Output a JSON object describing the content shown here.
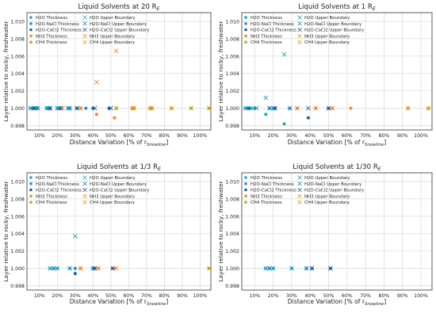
{
  "chart_data": [
    {
      "type": "scatter",
      "title": "Liquid Solvents at 20 R",
      "title_subscript": "E",
      "xlabel": "Distance Variation [% of r",
      "xlabel_subscript": "Snowline",
      "xlabel_close": "]",
      "ylabel": "Layer relative to rocky, freshwater",
      "ylim": [
        0.9975,
        1.011
      ],
      "xlim": [
        3,
        106
      ],
      "yticks": [
        "1.010",
        "1.008",
        "1.006",
        "1.004",
        "1.002",
        "1.000",
        "0.998"
      ],
      "xticks": [
        "10%",
        "20%",
        "30%",
        "40%",
        "50%",
        "60%",
        "70%",
        "80%",
        "90%",
        "100%"
      ],
      "grid": true,
      "legend": "top-left",
      "series": [
        {
          "name": "H2O Thickness",
          "marker": "square",
          "color": "#1aa6b4",
          "x": [
            5,
            8,
            14,
            20,
            26,
            33
          ],
          "y": [
            1.0,
            1.0,
            1.0,
            1.0,
            1.0,
            1.0
          ]
        },
        {
          "name": "H2O-NaCl Thickness",
          "marker": "square",
          "color": "#2b83ba",
          "x": [
            6,
            9,
            15,
            21,
            27,
            36
          ],
          "y": [
            1.0,
            1.0,
            1.0,
            1.0,
            1.0,
            1.0
          ]
        },
        {
          "name": "H2O-CaCl2 Thickness",
          "marker": "square",
          "color": "#1f5c99",
          "x": [
            7,
            16,
            22,
            31,
            40,
            49
          ],
          "y": [
            1.0,
            1.0,
            1.0,
            1.0,
            1.0,
            1.0
          ]
        },
        {
          "name": "NH3 Thickness",
          "marker": "square",
          "color": "#f0853a",
          "x": [
            33,
            42,
            52,
            62,
            72
          ],
          "y": [
            1.0,
            0.9993,
            0.9989,
            1.0,
            1.0
          ]
        },
        {
          "name": "CH4 Thickness",
          "marker": "square",
          "color": "#9aae2a",
          "x": [
            53,
            63,
            73,
            84,
            95,
            105
          ],
          "y": [
            1.0,
            1.0,
            1.0,
            1.0,
            1.0,
            1.0
          ]
        },
        {
          "name": "H2O Upper Boundary",
          "marker": "x",
          "color": "#1aa6b4",
          "x": [
            5,
            8,
            14,
            20,
            26
          ],
          "y": [
            1.0,
            1.0,
            1.0,
            1.0,
            1.0
          ]
        },
        {
          "name": "H2O-NaCl Upper Boundary",
          "marker": "x",
          "color": "#2b83ba",
          "x": [
            9,
            15,
            21,
            27
          ],
          "y": [
            1.0,
            1.0,
            1.0,
            1.0
          ]
        },
        {
          "name": "H2O-CaCl2 Upper Boundary",
          "marker": "x",
          "color": "#1f5c99",
          "x": [
            7,
            16,
            22,
            31,
            41,
            50
          ],
          "y": [
            1.0,
            1.0,
            1.0,
            1.0,
            1.0,
            1.0
          ]
        },
        {
          "name": "NH3 Upper Boundary",
          "marker": "x",
          "color": "#f0853a",
          "x": [
            23,
            33,
            42,
            53,
            62,
            72
          ],
          "y": [
            1.0,
            1.0,
            1.003,
            1.0066,
            1.0,
            1.0
          ]
        },
        {
          "name": "CH4 Upper Boundary",
          "marker": "x",
          "color": "#d6a020",
          "x": [
            53,
            63,
            73,
            84,
            95,
            105
          ],
          "y": [
            1.0,
            1.0,
            1.0,
            1.0,
            1.0,
            1.0
          ]
        }
      ]
    },
    {
      "type": "scatter",
      "title": "Liquid Solvents at 1 R",
      "title_subscript": "E",
      "xlabel": "Distance Variation [% of r",
      "xlabel_subscript": "Snowline",
      "xlabel_close": "]",
      "ylabel": "Layer relative to rocky, freshwater",
      "ylim": [
        0.9975,
        1.011
      ],
      "xlim": [
        3,
        106
      ],
      "yticks": [
        "1.010",
        "1.008",
        "1.006",
        "1.004",
        "1.002",
        "1.000",
        "0.998"
      ],
      "xticks": [
        "10%",
        "20%",
        "30%",
        "40%",
        "50%",
        "60%",
        "70%",
        "80%",
        "90%",
        "100%"
      ],
      "grid": true,
      "legend": "top-left",
      "series": [
        {
          "name": "H2O Thickness",
          "marker": "square",
          "color": "#1aa6b4",
          "x": [
            5,
            8,
            16,
            20,
            26
          ],
          "y": [
            1.0,
            1.0,
            0.9993,
            1.0,
            0.9982
          ]
        },
        {
          "name": "H2O-NaCl Thickness",
          "marker": "square",
          "color": "#2b83ba",
          "x": [
            6,
            10,
            18,
            29
          ],
          "y": [
            1.0,
            1.0,
            1.0,
            1.0
          ]
        },
        {
          "name": "H2O-CaCl2 Thickness",
          "marker": "square",
          "color": "#1f5c99",
          "x": [
            7,
            21,
            39,
            50
          ],
          "y": [
            1.0,
            1.0,
            0.9989,
            1.0
          ]
        },
        {
          "name": "NH3 Thickness",
          "marker": "square",
          "color": "#f0853a",
          "x": [
            33,
            43,
            52,
            62
          ],
          "y": [
            1.0,
            1.0,
            1.0,
            1.0
          ]
        },
        {
          "name": "CH4 Thickness",
          "marker": "square",
          "color": "#9aae2a",
          "x": [
            93,
            104
          ],
          "y": [
            1.0,
            1.0
          ]
        },
        {
          "name": "H2O Upper Boundary",
          "marker": "x",
          "color": "#1aa6b4",
          "x": [
            5,
            8,
            16,
            20,
            26
          ],
          "y": [
            1.0,
            1.0,
            1.0012,
            1.0,
            1.0062
          ]
        },
        {
          "name": "H2O-NaCl Upper Boundary",
          "marker": "x",
          "color": "#2b83ba",
          "x": [
            11,
            18,
            29
          ],
          "y": [
            1.0,
            1.0,
            1.0
          ]
        },
        {
          "name": "H2O-CaCl2 Upper Boundary",
          "marker": "x",
          "color": "#1f5c99",
          "x": [
            21,
            39,
            50
          ],
          "y": [
            1.0,
            1.0,
            1.0
          ]
        },
        {
          "name": "NH3 Upper Boundary",
          "marker": "x",
          "color": "#f0853a",
          "x": [
            33,
            43,
            52
          ],
          "y": [
            1.0,
            1.0,
            1.0
          ]
        },
        {
          "name": "CH4 Upper Boundary",
          "marker": "x",
          "color": "#d6a020",
          "x": [
            93,
            104
          ],
          "y": [
            1.0,
            1.0
          ]
        }
      ]
    },
    {
      "type": "scatter",
      "title": "Liquid Solvents at 1/3 R",
      "title_subscript": "E",
      "xlabel": "Distance Variation [% of r",
      "xlabel_subscript": "Snowline",
      "xlabel_close": "]",
      "ylabel": "Layer relative to rocky, freshwater",
      "ylim": [
        0.9975,
        1.011
      ],
      "xlim": [
        3,
        106
      ],
      "yticks": [
        "1.010",
        "1.008",
        "1.006",
        "1.004",
        "1.002",
        "1.000",
        "0.998"
      ],
      "xticks": [
        "10%",
        "20%",
        "30%",
        "40%",
        "50%",
        "60%",
        "70%",
        "80%",
        "90%",
        "100%"
      ],
      "grid": true,
      "legend": "top-left",
      "series": [
        {
          "name": "H2O Thickness",
          "marker": "square",
          "color": "#1aa6b4",
          "x": [
            16,
            20,
            27
          ],
          "y": [
            1.0,
            1.0,
            1.0
          ]
        },
        {
          "name": "H2O-NaCl Thickness",
          "marker": "square",
          "color": "#2b83ba",
          "x": [
            18,
            30,
            40
          ],
          "y": [
            1.0,
            1.0,
            1.0
          ]
        },
        {
          "name": "H2O-CaCl2 Thickness",
          "marker": "square",
          "color": "#1f5c99",
          "x": [
            30,
            41,
            51
          ],
          "y": [
            0.9994,
            1.0,
            1.0
          ]
        },
        {
          "name": "NH3 Thickness",
          "marker": "square",
          "color": "#f0853a",
          "x": [
            33,
            43,
            52
          ],
          "y": [
            1.0,
            1.0,
            1.0
          ]
        },
        {
          "name": "CH4 Thickness",
          "marker": "square",
          "color": "#9aae2a",
          "x": [
            105
          ],
          "y": [
            1.0
          ]
        },
        {
          "name": "H2O Upper Boundary",
          "marker": "x",
          "color": "#1aa6b4",
          "x": [
            16,
            20,
            27,
            30
          ],
          "y": [
            1.0,
            1.0,
            1.0,
            1.0037
          ]
        },
        {
          "name": "H2O-NaCl Upper Boundary",
          "marker": "x",
          "color": "#2b83ba",
          "x": [
            18,
            40
          ],
          "y": [
            1.0,
            1.0
          ]
        },
        {
          "name": "H2O-CaCl2 Upper Boundary",
          "marker": "x",
          "color": "#1f5c99",
          "x": [
            41,
            51
          ],
          "y": [
            1.0,
            1.0
          ]
        },
        {
          "name": "NH3 Upper Boundary",
          "marker": "x",
          "color": "#f0853a",
          "x": [
            33,
            43,
            53
          ],
          "y": [
            1.0,
            1.0,
            1.0
          ]
        },
        {
          "name": "CH4 Upper Boundary",
          "marker": "x",
          "color": "#d6a020",
          "x": [
            105
          ],
          "y": [
            1.0
          ]
        }
      ]
    },
    {
      "type": "scatter",
      "title": "Liquid Solvents at 1/30 R",
      "title_subscript": "E",
      "xlabel": "Distance Variation [% of r",
      "xlabel_subscript": "Snowline",
      "xlabel_close": "]",
      "ylabel": "Layer relative to rocky, freshwater",
      "ylim": [
        0.9975,
        1.011
      ],
      "xlim": [
        3,
        106
      ],
      "yticks": [
        "1.010",
        "1.008",
        "1.006",
        "1.004",
        "1.002",
        "1.000",
        "0.998"
      ],
      "xticks": [
        "10%",
        "20%",
        "30%",
        "40%",
        "50%",
        "60%",
        "70%",
        "80%",
        "90%",
        "100%"
      ],
      "grid": true,
      "legend": "top-left",
      "series": [
        {
          "name": "H2O Thickness",
          "marker": "square",
          "color": "#1aa6b4",
          "x": [
            16,
            20,
            30
          ],
          "y": [
            1.0,
            1.0,
            1.0
          ]
        },
        {
          "name": "H2O-NaCl Thickness",
          "marker": "square",
          "color": "#2b83ba",
          "x": [
            18,
            38
          ],
          "y": [
            1.0,
            1.0
          ]
        },
        {
          "name": "H2O-CaCl2 Thickness",
          "marker": "square",
          "color": "#1f5c99",
          "x": [
            41,
            51
          ],
          "y": [
            1.0,
            1.0
          ]
        },
        {
          "name": "NH3 Thickness",
          "marker": "square",
          "color": "#f0853a",
          "x": [],
          "y": []
        },
        {
          "name": "CH4 Thickness",
          "marker": "square",
          "color": "#9aae2a",
          "x": [],
          "y": []
        },
        {
          "name": "H2O Upper Boundary",
          "marker": "x",
          "color": "#1aa6b4",
          "x": [
            16,
            20,
            30
          ],
          "y": [
            1.0,
            1.0,
            1.0
          ]
        },
        {
          "name": "H2O-NaCl Upper Boundary",
          "marker": "x",
          "color": "#2b83ba",
          "x": [
            18,
            38
          ],
          "y": [
            1.0,
            1.0
          ]
        },
        {
          "name": "H2O-CaCl2 Upper Boundary",
          "marker": "x",
          "color": "#1f5c99",
          "x": [
            41,
            51
          ],
          "y": [
            1.0,
            1.0
          ]
        },
        {
          "name": "NH3 Upper Boundary",
          "marker": "x",
          "color": "#f0853a",
          "x": [],
          "y": []
        },
        {
          "name": "CH4 Upper Boundary",
          "marker": "x",
          "color": "#d6a020",
          "x": [],
          "y": []
        }
      ]
    }
  ],
  "colors": {
    "grid": "#d9d9d9",
    "axis": "#333333",
    "text": "#222222"
  }
}
